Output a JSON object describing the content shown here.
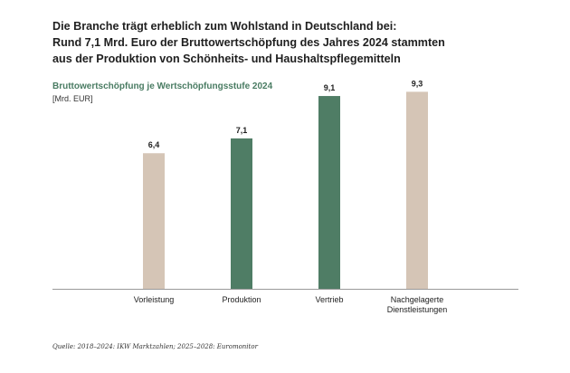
{
  "header": {
    "headline_lines": [
      "Die Branche trägt erheblich zum Wohlstand in Deutschland bei:",
      "Rund 7,1 Mrd. Euro der Bruttowertschöpfung des Jahres 2024 stammten",
      "aus der Produktion von Schönheits- und Haushaltspflegemitteln"
    ]
  },
  "chart_data": {
    "type": "bar",
    "title": "Bruttowertschöpfung je Wertschöpfungsstufe 2024",
    "ylabel": "[Mrd. EUR]",
    "categories": [
      "Vorleistung",
      "Produktion",
      "Vertrieb",
      "Nachgelagerte Dienstleistungen"
    ],
    "values": [
      6.4,
      7.1,
      9.1,
      9.3
    ],
    "value_labels": [
      "6,4",
      "7,1",
      "9,1",
      "9,3"
    ],
    "ylim": [
      0,
      10
    ],
    "grid": false,
    "colors": [
      "#d5c5b6",
      "#4f7d65",
      "#4f7d65",
      "#d5c5b6"
    ],
    "axis_color": "#9a9a9a"
  },
  "footer": {
    "source": "Quelle: 2018–2024: IKW Marktzahlen; 2025–2028: Euromonitor"
  }
}
